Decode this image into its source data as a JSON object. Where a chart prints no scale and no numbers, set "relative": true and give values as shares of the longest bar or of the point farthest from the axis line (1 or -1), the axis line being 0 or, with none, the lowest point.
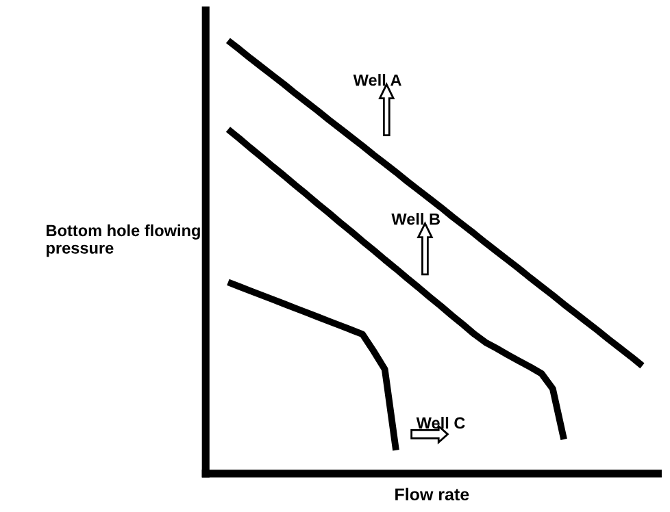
{
  "chart_data": {
    "type": "line",
    "relative": true,
    "xlabel": "Flow rate",
    "ylabel": "Bottom hole flowing pressure",
    "marker": "none",
    "line_style": "solid",
    "categories": [
      null,
      null,
      null,
      null,
      null,
      null,
      null,
      null,
      null,
      null,
      null,
      null,
      null,
      null,
      null,
      null,
      null,
      null,
      null,
      null,
      null,
      null,
      null,
      null,
      null,
      null,
      null,
      null,
      null,
      null,
      null,
      null,
      null,
      null,
      null,
      null,
      null,
      null,
      null,
      null,
      null
    ],
    "series": [
      {
        "color": "#000000",
        "values": [
          null,
          null,
          1.0,
          0.98,
          0.959,
          0.939,
          0.919,
          0.899,
          0.878,
          0.858,
          0.838,
          0.817,
          0.797,
          0.777,
          0.757,
          0.736,
          0.716,
          0.696,
          0.675,
          0.655,
          0.635,
          0.615,
          0.594,
          0.574,
          0.554,
          0.533,
          0.513,
          0.493,
          0.473,
          0.452,
          0.432,
          0.412,
          0.391,
          0.371,
          0.351,
          0.331,
          0.31,
          0.29,
          0.27,
          0.249,
          null
        ]
      },
      {
        "color": "#000000",
        "values": [
          null,
          null,
          0.795,
          0.774,
          0.752,
          0.731,
          0.709,
          0.688,
          0.666,
          0.645,
          0.623,
          0.602,
          0.58,
          0.559,
          0.537,
          0.516,
          0.494,
          0.473,
          0.451,
          0.43,
          0.408,
          0.387,
          0.365,
          0.344,
          0.322,
          0.303,
          0.289,
          0.274,
          0.26,
          0.246,
          0.231,
          0.196,
          0.079,
          null,
          null,
          null,
          null,
          null,
          null,
          null,
          null
        ]
      },
      {
        "color": "#000000",
        "values": [
          null,
          null,
          0.442,
          0.432,
          0.422,
          0.412,
          0.402,
          0.392,
          0.382,
          0.372,
          0.362,
          0.352,
          0.342,
          0.332,
          0.322,
          0.283,
          0.241,
          0.054,
          null,
          null,
          null,
          null,
          null,
          null,
          null,
          null,
          null,
          null,
          null,
          null,
          null,
          null,
          null,
          null,
          null,
          null,
          null,
          null,
          null,
          null,
          null
        ]
      }
    ],
    "annotations": [
      "Well A",
      "Well B",
      "Well C"
    ]
  }
}
